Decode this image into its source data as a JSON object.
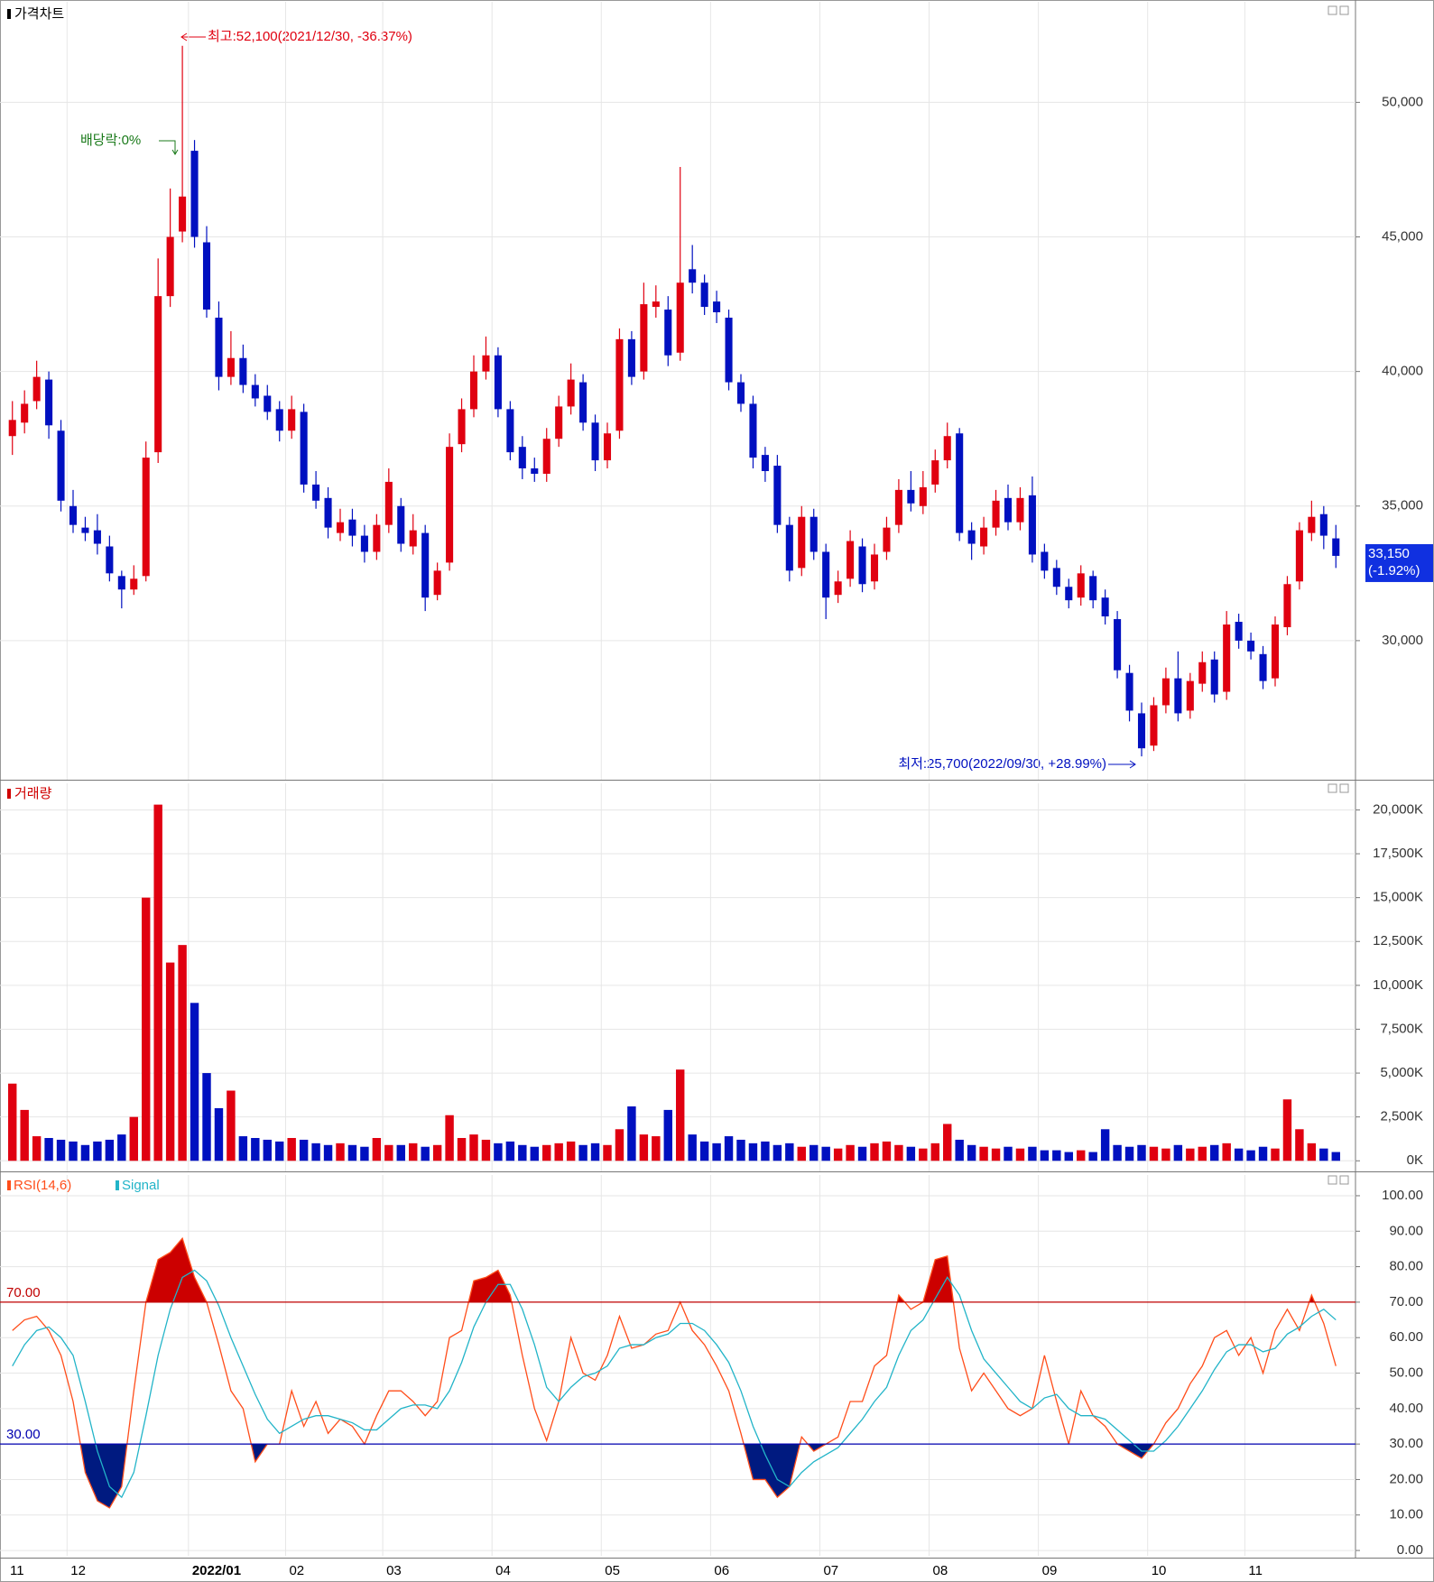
{
  "chart_data": [
    {
      "type": "candlestick",
      "title": "가격차트",
      "open": [
        37600,
        38100,
        38900,
        39700,
        37800,
        35000,
        34200,
        34100,
        33500,
        32400,
        31900,
        32400,
        37000,
        42800,
        45200,
        48200,
        44800,
        42000,
        39800,
        40500,
        39500,
        39100,
        38600,
        37800,
        38500,
        35800,
        35300,
        34000,
        34500,
        33900,
        33300,
        34300,
        35000,
        33500,
        34000,
        31700,
        32900,
        37300,
        38600,
        40000,
        40600,
        38600,
        37200,
        36400,
        36200,
        37500,
        38700,
        39600,
        38100,
        36700,
        37800,
        41200,
        40000,
        42400,
        42300,
        40700,
        43800,
        43300,
        42600,
        42000,
        39600,
        38800,
        36900,
        36500,
        34300,
        32700,
        34600,
        33300,
        31700,
        32300,
        33500,
        32200,
        33300,
        34300,
        35600,
        35000,
        35800,
        36700,
        37700,
        34100,
        33500,
        34200,
        35300,
        34400,
        35400,
        33300,
        32700,
        32000,
        31600,
        32400,
        31600,
        30800,
        28800,
        27300,
        26100,
        27600,
        28600,
        27400,
        28400,
        29300,
        28100,
        30700,
        30000,
        29500,
        28600,
        30500,
        32200,
        34000,
        34700,
        33800
      ],
      "high": [
        38900,
        39300,
        40400,
        40000,
        38200,
        35600,
        34600,
        34700,
        33900,
        32600,
        32800,
        37400,
        44200,
        46800,
        52100,
        48600,
        45400,
        42600,
        41500,
        41000,
        39900,
        39500,
        38900,
        39100,
        38800,
        36300,
        35700,
        34900,
        34900,
        34300,
        34700,
        36400,
        35300,
        34700,
        34300,
        32900,
        37700,
        39000,
        40600,
        41300,
        40900,
        38900,
        37600,
        36800,
        37900,
        39100,
        40300,
        39900,
        38400,
        38100,
        41600,
        41500,
        43300,
        43200,
        42800,
        47600,
        44700,
        43600,
        43000,
        42300,
        39900,
        39100,
        37200,
        36900,
        34600,
        35000,
        34900,
        33600,
        32600,
        34100,
        33800,
        33600,
        34600,
        36000,
        36300,
        36300,
        37100,
        38100,
        37900,
        34400,
        34600,
        35600,
        35800,
        35700,
        36100,
        33600,
        33000,
        32300,
        32800,
        32600,
        31900,
        31100,
        29100,
        27700,
        27900,
        29000,
        29600,
        28800,
        29600,
        29600,
        31100,
        31000,
        30300,
        29800,
        30900,
        32400,
        34400,
        35200,
        35000,
        34300
      ],
      "low": [
        36900,
        37700,
        38600,
        37500,
        34800,
        34000,
        33700,
        33200,
        32200,
        31200,
        31700,
        32200,
        36600,
        42400,
        44800,
        44600,
        42000,
        39300,
        39500,
        39200,
        38700,
        38200,
        37400,
        37500,
        35500,
        34900,
        33800,
        33700,
        33500,
        32900,
        33000,
        34000,
        33300,
        33200,
        31100,
        31500,
        32600,
        37000,
        38300,
        39700,
        38300,
        36700,
        36000,
        35900,
        35900,
        37200,
        38400,
        37800,
        36300,
        36400,
        37500,
        39500,
        39700,
        42000,
        40200,
        40400,
        42900,
        42100,
        41800,
        39300,
        38500,
        36400,
        35900,
        34000,
        32200,
        32400,
        33000,
        30800,
        31400,
        32000,
        31800,
        31900,
        33000,
        34000,
        34800,
        34700,
        35500,
        36400,
        33700,
        33000,
        33200,
        33900,
        34100,
        34100,
        32900,
        32300,
        31700,
        31200,
        31300,
        31200,
        30600,
        28600,
        27000,
        25700,
        25900,
        27300,
        27000,
        27100,
        28100,
        27700,
        27800,
        29700,
        29300,
        28200,
        28300,
        30200,
        31900,
        33700,
        33400,
        32700
      ],
      "close": [
        38200,
        38800,
        39800,
        38000,
        35200,
        34300,
        34000,
        33600,
        32500,
        31900,
        32300,
        36800,
        42800,
        45000,
        46500,
        45000,
        42300,
        39800,
        40500,
        39500,
        39000,
        38500,
        37800,
        38600,
        35800,
        35200,
        34200,
        34400,
        33900,
        33300,
        34300,
        35900,
        33600,
        34100,
        31600,
        32600,
        37200,
        38600,
        40000,
        40600,
        38600,
        37000,
        36400,
        36200,
        37500,
        38700,
        39700,
        38100,
        36700,
        37700,
        41200,
        39800,
        42500,
        42600,
        40600,
        43300,
        43300,
        42400,
        42200,
        39600,
        38800,
        36800,
        36300,
        34300,
        32600,
        34600,
        33300,
        31600,
        32200,
        33700,
        32100,
        33200,
        34200,
        35600,
        35100,
        35700,
        36700,
        37600,
        34000,
        33600,
        34200,
        35200,
        34400,
        35300,
        33200,
        32600,
        32000,
        31500,
        32500,
        31500,
        30900,
        28900,
        27400,
        26000,
        27600,
        28600,
        27300,
        28500,
        29200,
        28000,
        30600,
        30000,
        29600,
        28500,
        30600,
        32100,
        34100,
        34600,
        33900,
        33150
      ],
      "up_color": "#e00010",
      "down_color": "#0010c0",
      "ylim": [
        24900,
        53400
      ],
      "yticks": [
        {
          "value": 30000,
          "label": "30,000"
        },
        {
          "value": 35000,
          "label": "35,000"
        },
        {
          "value": 40000,
          "label": "40,000"
        },
        {
          "value": 45000,
          "label": "45,000"
        },
        {
          "value": 50000,
          "label": "50,000"
        }
      ],
      "grid": true,
      "annotations": {
        "high": "최고:52,100(2021/12/30, -36.37%)",
        "low": "최저:25,700(2022/09/30, +28.99%)",
        "dividend": "배당락:0%"
      },
      "last_price_label": "33,150",
      "last_change_label": "(-1.92%)"
    },
    {
      "type": "bar",
      "title": "거래량",
      "values": [
        4400,
        2900,
        1400,
        1300,
        1200,
        1100,
        900,
        1100,
        1200,
        1500,
        2500,
        15000,
        20300,
        11300,
        12300,
        9000,
        5000,
        3000,
        4000,
        1400,
        1300,
        1200,
        1100,
        1300,
        1200,
        1000,
        900,
        1000,
        900,
        800,
        1300,
        900,
        900,
        1000,
        800,
        900,
        2600,
        1300,
        1500,
        1200,
        1000,
        1100,
        900,
        800,
        900,
        1000,
        1100,
        900,
        1000,
        900,
        1800,
        3100,
        1500,
        1400,
        2900,
        5200,
        1500,
        1100,
        1000,
        1400,
        1200,
        1000,
        1100,
        900,
        1000,
        800,
        900,
        800,
        700,
        900,
        800,
        1000,
        1100,
        900,
        800,
        700,
        1000,
        2100,
        1200,
        900,
        800,
        700,
        800,
        700,
        800,
        600,
        600,
        500,
        600,
        500,
        1800,
        900,
        800,
        900,
        800,
        700,
        900,
        700,
        800,
        900,
        1000,
        700,
        600,
        800,
        700,
        3500,
        1800,
        1000,
        700,
        500
      ],
      "ylim": [
        -500,
        21000
      ],
      "yticks": [
        {
          "value": 0,
          "label": "0K"
        },
        {
          "value": 2500,
          "label": "2,500K"
        },
        {
          "value": 5000,
          "label": "5,000K"
        },
        {
          "value": 7500,
          "label": "7,500K"
        },
        {
          "value": 10000,
          "label": "10,000K"
        },
        {
          "value": 12500,
          "label": "12,500K"
        },
        {
          "value": 15000,
          "label": "15,000K"
        },
        {
          "value": 17500,
          "label": "17,500K"
        },
        {
          "value": 20000,
          "label": "20,000K"
        }
      ],
      "grid": true
    },
    {
      "type": "line",
      "categories": [
        "11",
        null,
        null,
        null,
        null,
        "12",
        null,
        null,
        null,
        null,
        null,
        null,
        null,
        null,
        null,
        "2022/01",
        null,
        null,
        null,
        null,
        null,
        null,
        null,
        "02",
        null,
        null,
        null,
        null,
        null,
        null,
        null,
        "03",
        null,
        null,
        null,
        null,
        null,
        null,
        null,
        null,
        "04",
        null,
        null,
        null,
        null,
        null,
        null,
        null,
        null,
        "05",
        null,
        null,
        null,
        null,
        null,
        null,
        null,
        null,
        "06",
        null,
        null,
        null,
        null,
        null,
        null,
        null,
        null,
        "07",
        null,
        null,
        null,
        null,
        null,
        null,
        null,
        null,
        "08",
        null,
        null,
        null,
        null,
        null,
        null,
        null,
        null,
        "09",
        null,
        null,
        null,
        null,
        null,
        null,
        null,
        null,
        "10",
        null,
        null,
        null,
        null,
        null,
        null,
        null,
        "11",
        null,
        null,
        null,
        null,
        null,
        null,
        null
      ],
      "series": [
        {
          "name": "RSI(14,6)",
          "color": "#ff4d1a",
          "values": [
            62,
            65,
            66,
            62,
            55,
            42,
            22,
            14,
            12,
            18,
            45,
            70,
            82,
            84,
            88,
            77,
            70,
            58,
            45,
            40,
            25,
            30,
            30,
            45,
            35,
            42,
            33,
            37,
            35,
            30,
            38,
            45,
            45,
            42,
            38,
            42,
            60,
            62,
            76,
            77,
            79,
            72,
            55,
            40,
            31,
            42,
            60,
            50,
            48,
            55,
            66,
            57,
            58,
            61,
            62,
            70,
            62,
            58,
            52,
            45,
            33,
            20,
            20,
            15,
            18,
            32,
            28,
            30,
            32,
            42,
            42,
            52,
            55,
            72,
            68,
            70,
            82,
            83,
            57,
            45,
            50,
            45,
            40,
            38,
            40,
            55,
            42,
            30,
            45,
            38,
            35,
            30,
            28,
            26,
            30,
            36,
            40,
            47,
            52,
            60,
            62,
            55,
            60,
            50,
            62,
            68,
            62,
            72,
            64,
            52
          ]
        },
        {
          "name": "Signal",
          "color": "#22b4c8",
          "values": [
            52,
            58,
            62,
            63,
            60,
            55,
            42,
            28,
            18,
            15,
            22,
            38,
            55,
            68,
            77,
            79,
            76,
            69,
            60,
            52,
            44,
            37,
            33,
            35,
            37,
            38,
            38,
            37,
            36,
            34,
            34,
            37,
            40,
            41,
            41,
            40,
            45,
            53,
            63,
            70,
            75,
            75,
            68,
            58,
            46,
            42,
            46,
            49,
            50,
            52,
            57,
            58,
            58,
            60,
            61,
            64,
            64,
            62,
            58,
            53,
            45,
            35,
            27,
            20,
            18,
            22,
            25,
            27,
            29,
            33,
            37,
            42,
            46,
            55,
            62,
            65,
            71,
            77,
            72,
            62,
            54,
            50,
            46,
            42,
            40,
            43,
            44,
            40,
            38,
            38,
            37,
            34,
            31,
            28,
            28,
            31,
            35,
            40,
            45,
            51,
            56,
            58,
            58,
            56,
            57,
            61,
            63,
            66,
            68,
            65
          ]
        }
      ],
      "levels": [
        {
          "value": 70,
          "label": "70.00",
          "color": "#c00000",
          "fill": "#cc0000"
        },
        {
          "value": 30,
          "label": "30.00",
          "color": "#0000b0",
          "fill": "#001a80"
        }
      ],
      "ylim": [
        -1,
        103.3
      ],
      "yticks": [
        {
          "value": 0,
          "label": "0.00"
        },
        {
          "value": 10,
          "label": "10.00"
        },
        {
          "value": 20,
          "label": "20.00"
        },
        {
          "value": 30,
          "label": "30.00"
        },
        {
          "value": 40,
          "label": "40.00"
        },
        {
          "value": 50,
          "label": "50.00"
        },
        {
          "value": 60,
          "label": "60.00"
        },
        {
          "value": 70,
          "label": "70.00"
        },
        {
          "value": 80,
          "label": "80.00"
        },
        {
          "value": 90,
          "label": "90.00"
        },
        {
          "value": 100,
          "label": "100.00"
        }
      ],
      "grid": true
    }
  ]
}
